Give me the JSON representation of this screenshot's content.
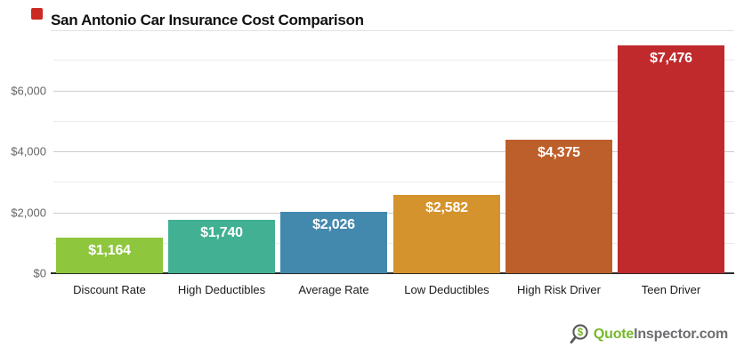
{
  "marker": {
    "name": "red-square-marker",
    "color": "#cb2a22"
  },
  "chart_data": {
    "type": "bar",
    "title": "San Antonio Car Insurance Cost Comparison",
    "categories": [
      "Discount Rate",
      "High Deductibles",
      "Average Rate",
      "Low Deductibles",
      "High Risk Driver",
      "Teen Driver"
    ],
    "values": [
      1164,
      1740,
      2026,
      2582,
      4375,
      7476
    ],
    "value_labels": [
      "$1,164",
      "$1,740",
      "$2,026",
      "$2,582",
      "$4,375",
      "$7,476"
    ],
    "bar_colors": [
      "#8ec63d",
      "#42b092",
      "#4389ad",
      "#d4932d",
      "#bd5f2b",
      "#c02a2d"
    ],
    "value_label_color": "#ffffff",
    "xlabel": "",
    "ylabel": "",
    "ylim": [
      0,
      7800
    ],
    "ytick_values": [
      0,
      2000,
      4000,
      6000
    ],
    "ytick_labels": [
      "$0",
      "$2,000",
      "$4,000",
      "$6,000"
    ],
    "minor_gridline_values": [
      1000,
      3000,
      5000,
      7000
    ],
    "grid": "on",
    "legend": "none"
  },
  "watermark": {
    "icon": "magnifier-dollar-icon",
    "icon_symbol": "$",
    "brand_green_text": "Quote",
    "brand_gray_text": "Inspector.com",
    "green": "#76b82a",
    "gray": "#6d6e71"
  }
}
